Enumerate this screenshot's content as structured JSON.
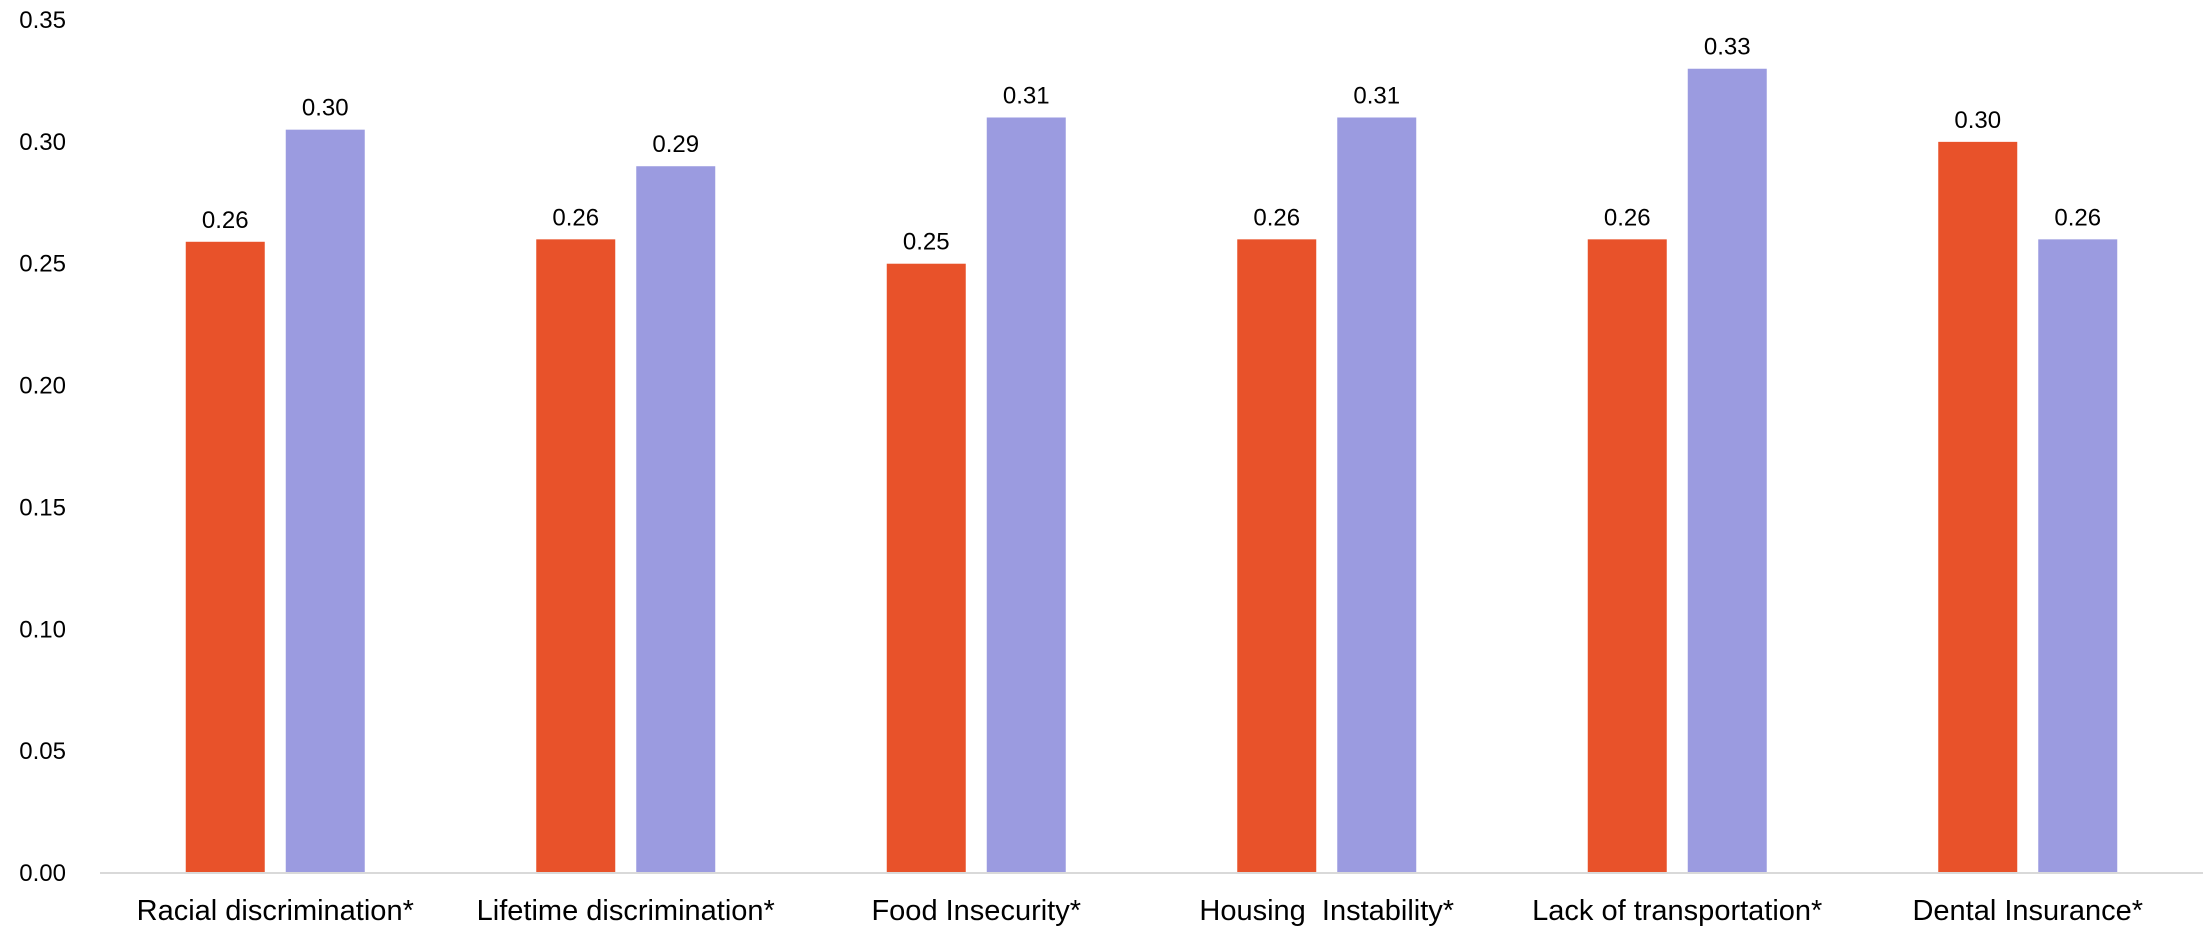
{
  "chart_data": {
    "type": "bar",
    "title": "",
    "xlabel": "",
    "ylabel": "",
    "ylim": [
      0,
      0.35
    ],
    "yticks": [
      "0.00",
      "0.05",
      "0.10",
      "0.15",
      "0.20",
      "0.25",
      "0.30",
      "0.35"
    ],
    "grid": false,
    "legend": "none",
    "categories": [
      "Racial discrimination*",
      "Lifetime discrimination*",
      "Food Insecurity*",
      "Housing  Instability*",
      "Lack of transportation*",
      "Dental Insurance*"
    ],
    "series": [
      {
        "color": "#E8522A",
        "values": [
          0.259,
          0.26,
          0.25,
          0.26,
          0.26,
          0.3
        ],
        "labels": [
          "0.26",
          "0.26",
          "0.25",
          "0.26",
          "0.26",
          "0.30"
        ]
      },
      {
        "color": "#9B9BE0",
        "values": [
          0.305,
          0.29,
          0.31,
          0.31,
          0.33,
          0.26
        ],
        "labels": [
          "0.30",
          "0.29",
          "0.31",
          "0.31",
          "0.33",
          "0.26"
        ]
      }
    ]
  }
}
